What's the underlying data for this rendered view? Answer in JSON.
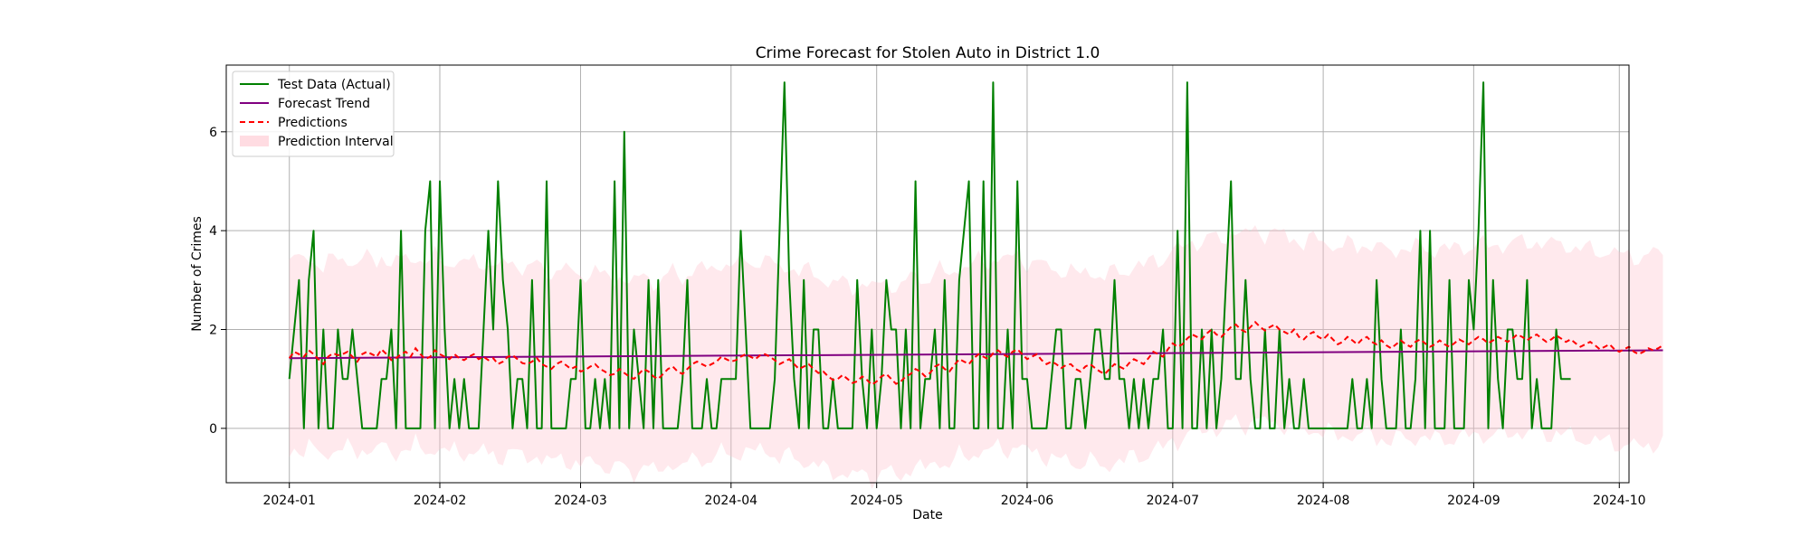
{
  "chart_data": {
    "type": "line",
    "title": "Crime Forecast for Stolen Auto in District 1.0",
    "xlabel": "Date",
    "ylabel": "Number of Crimes",
    "x_axis": "date",
    "xlim": [
      "2023-12-19",
      "2024-10-03"
    ],
    "ylim": [
      -1.1,
      7.35
    ],
    "xticks": [
      "2024-01-01",
      "2024-02-01",
      "2024-03-01",
      "2024-04-01",
      "2024-05-01",
      "2024-06-01",
      "2024-07-01",
      "2024-08-01",
      "2024-09-01",
      "2024-10-01"
    ],
    "xtick_labels": [
      "2024-01",
      "2024-02",
      "2024-03",
      "2024-04",
      "2024-05",
      "2024-06",
      "2024-07",
      "2024-08",
      "2024-09",
      "2024-10"
    ],
    "yticks": [
      0,
      2,
      4,
      6
    ],
    "ytick_labels": [
      "0",
      "2",
      "4",
      "6"
    ],
    "grid": true,
    "legend_position": "top-left",
    "start_date": "2024-01-01",
    "series": [
      {
        "name": "Test Data (Actual)",
        "type": "line",
        "color": "#008000",
        "values": [
          1,
          2,
          3,
          0,
          3,
          4,
          0,
          2,
          0,
          0,
          2,
          1,
          1,
          2,
          1,
          0,
          0,
          0,
          0,
          1,
          1,
          2,
          0,
          4,
          0,
          0,
          0,
          0,
          4,
          5,
          0,
          5,
          2,
          0,
          1,
          0,
          1,
          0,
          0,
          0,
          2,
          4,
          2,
          5,
          3,
          2,
          0,
          1,
          1,
          0,
          3,
          0,
          0,
          5,
          0,
          0,
          0,
          0,
          1,
          1,
          3,
          0,
          0,
          1,
          0,
          1,
          0,
          5,
          0,
          6,
          0,
          2,
          1,
          0,
          3,
          0,
          3,
          0,
          0,
          0,
          0,
          1,
          3,
          0,
          0,
          0,
          1,
          0,
          0,
          1,
          1,
          1,
          1,
          4,
          2,
          0,
          0,
          0,
          0,
          0,
          1,
          4,
          7,
          3,
          1,
          0,
          3,
          0,
          2,
          2,
          0,
          0,
          1,
          0,
          0,
          0,
          0,
          3,
          1,
          0,
          2,
          0,
          1,
          3,
          2,
          2,
          0,
          2,
          0,
          5,
          0,
          1,
          1,
          2,
          0,
          3,
          0,
          0,
          3,
          4,
          5,
          0,
          0,
          5,
          0,
          7,
          0,
          0,
          2,
          0,
          5,
          1,
          1,
          0,
          0,
          0,
          0,
          1,
          2,
          2,
          0,
          0,
          1,
          1,
          0,
          1,
          2,
          2,
          1,
          1,
          3,
          1,
          1,
          0,
          1,
          0,
          1,
          0,
          1,
          1,
          2,
          0,
          0,
          4,
          0,
          7,
          0,
          0,
          2,
          0,
          2,
          0,
          1,
          3,
          5,
          1,
          1,
          3,
          1,
          0,
          0,
          2,
          0,
          0,
          2,
          0,
          1,
          0,
          0,
          1,
          0,
          0,
          0,
          0,
          0,
          0,
          0,
          0,
          0,
          1,
          0,
          0,
          1,
          0,
          3,
          1,
          0,
          0,
          0,
          2,
          0,
          0,
          1,
          4,
          0,
          4,
          0,
          0,
          0,
          3,
          0,
          0,
          0,
          3,
          2,
          4,
          7,
          0,
          3,
          1,
          0,
          2,
          2,
          1,
          1,
          3,
          0,
          1,
          0,
          0,
          0,
          2,
          1,
          1,
          1
        ]
      },
      {
        "name": "Forecast Trend",
        "type": "line",
        "color": "#800080",
        "start": 1.42,
        "end": 1.58
      },
      {
        "name": "Predictions",
        "type": "line",
        "style": "dashed",
        "color": "#ff0000",
        "values": [
          1.42,
          1.55,
          1.5,
          1.45,
          1.58,
          1.5,
          1.4,
          1.3,
          1.45,
          1.52,
          1.48,
          1.5,
          1.55,
          1.45,
          1.35,
          1.5,
          1.55,
          1.5,
          1.45,
          1.6,
          1.5,
          1.38,
          1.42,
          1.5,
          1.55,
          1.45,
          1.62,
          1.5,
          1.4,
          1.45,
          1.58,
          1.5,
          1.45,
          1.4,
          1.5,
          1.42,
          1.38,
          1.45,
          1.5,
          1.4,
          1.45,
          1.38,
          1.42,
          1.3,
          1.35,
          1.45,
          1.48,
          1.4,
          1.32,
          1.3,
          1.35,
          1.42,
          1.3,
          1.25,
          1.2,
          1.3,
          1.35,
          1.28,
          1.2,
          1.25,
          1.15,
          1.18,
          1.25,
          1.3,
          1.2,
          1.15,
          1.08,
          1.1,
          1.2,
          1.12,
          1.05,
          1.0,
          1.1,
          1.2,
          1.15,
          1.05,
          1.0,
          1.1,
          1.2,
          1.25,
          1.15,
          1.1,
          1.2,
          1.3,
          1.35,
          1.3,
          1.25,
          1.3,
          1.35,
          1.45,
          1.4,
          1.35,
          1.38,
          1.45,
          1.5,
          1.45,
          1.4,
          1.48,
          1.5,
          1.45,
          1.38,
          1.3,
          1.35,
          1.4,
          1.3,
          1.2,
          1.25,
          1.3,
          1.2,
          1.12,
          1.15,
          1.05,
          0.98,
          1.0,
          1.08,
          1.0,
          0.92,
          0.95,
          1.05,
          0.98,
          0.88,
          0.95,
          1.05,
          1.1,
          1.0,
          0.9,
          0.95,
          1.05,
          1.1,
          1.2,
          1.15,
          1.05,
          1.12,
          1.25,
          1.3,
          1.2,
          1.15,
          1.28,
          1.4,
          1.35,
          1.3,
          1.42,
          1.5,
          1.45,
          1.4,
          1.52,
          1.58,
          1.5,
          1.45,
          1.55,
          1.6,
          1.5,
          1.4,
          1.45,
          1.5,
          1.38,
          1.3,
          1.35,
          1.3,
          1.22,
          1.28,
          1.3,
          1.2,
          1.15,
          1.25,
          1.3,
          1.22,
          1.15,
          1.1,
          1.2,
          1.3,
          1.25,
          1.2,
          1.32,
          1.4,
          1.35,
          1.3,
          1.42,
          1.55,
          1.5,
          1.45,
          1.6,
          1.72,
          1.65,
          1.7,
          1.82,
          1.9,
          1.85,
          1.8,
          1.92,
          2.0,
          1.9,
          1.85,
          1.95,
          2.05,
          2.1,
          2.0,
          1.95,
          2.05,
          2.15,
          2.05,
          1.98,
          2.05,
          2.1,
          2.0,
          1.95,
          1.9,
          2.0,
          1.85,
          1.8,
          1.9,
          1.95,
          1.85,
          1.8,
          1.9,
          1.8,
          1.7,
          1.75,
          1.85,
          1.78,
          1.7,
          1.8,
          1.85,
          1.75,
          1.7,
          1.78,
          1.68,
          1.62,
          1.7,
          1.78,
          1.7,
          1.65,
          1.75,
          1.8,
          1.72,
          1.65,
          1.7,
          1.78,
          1.7,
          1.65,
          1.72,
          1.8,
          1.75,
          1.7,
          1.78,
          1.85,
          1.8,
          1.72,
          1.78,
          1.85,
          1.8,
          1.75,
          1.82,
          1.9,
          1.85,
          1.78,
          1.85,
          1.9,
          1.82,
          1.75,
          1.8,
          1.88,
          1.82,
          1.75,
          1.8,
          1.72,
          1.65,
          1.7,
          1.75,
          1.68,
          1.6,
          1.65,
          1.7,
          1.6,
          1.55,
          1.6,
          1.65,
          1.55,
          1.5,
          1.55,
          1.62,
          1.58,
          1.62,
          1.68
        ]
      },
      {
        "name": "Prediction Interval",
        "type": "band",
        "color": "#ffc0cb",
        "opacity": 0.35,
        "half_width": 1.92
      }
    ]
  }
}
